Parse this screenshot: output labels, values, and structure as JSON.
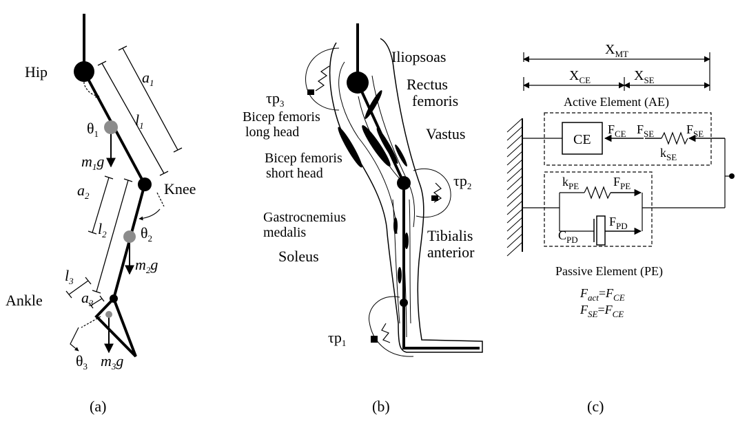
{
  "figure_a": {
    "hip": "Hip",
    "knee": "Knee",
    "ankle": "Ankle",
    "a1": {
      "base": "a",
      "sub": "1"
    },
    "l1": {
      "base": "l",
      "sub": "1"
    },
    "a2": {
      "base": "a",
      "sub": "2"
    },
    "l2": {
      "base": "l",
      "sub": "2"
    },
    "l3": {
      "base": "l",
      "sub": "3"
    },
    "a3": {
      "base": "a",
      "sub": "3"
    },
    "theta1": {
      "base": "θ",
      "sub": "1"
    },
    "theta2": {
      "base": "θ",
      "sub": "2"
    },
    "theta3": {
      "base": "θ",
      "sub": "3"
    },
    "m1g": {
      "m": "m",
      "sub": "1",
      "g": "g"
    },
    "m2g": {
      "m": "m",
      "sub": "2",
      "g": "g"
    },
    "m3g": {
      "m": "m",
      "sub": "3",
      "g": "g"
    },
    "caption": "(a)"
  },
  "figure_b": {
    "iliopsoas": "Iliopsoas",
    "rectus1": "Rectus",
    "rectus2": "femoris",
    "vastus": "Vastus",
    "tp3": {
      "base": "τp",
      "sub": "3"
    },
    "bfl1": "Bicep femoris",
    "bfl2": "long head",
    "bfs1": "Bicep femoris",
    "bfs2": "short head",
    "tp2": {
      "base": "τp",
      "sub": "2"
    },
    "gas1": "Gastrocnemius",
    "gas2": "medalis",
    "tib1": "Tibialis",
    "tib2": "anterior",
    "soleus": "Soleus",
    "tp1": {
      "base": "τp",
      "sub": "1"
    },
    "caption": "(b)"
  },
  "figure_c": {
    "xmt": {
      "base": "X",
      "sub": "MT"
    },
    "xce": {
      "base": "X",
      "sub": "CE"
    },
    "xse": {
      "base": "X",
      "sub": "SE"
    },
    "ae_title": "Active Element (AE)",
    "ce": "CE",
    "fce": {
      "base": "F",
      "sub": "CE"
    },
    "fse1": {
      "base": "F",
      "sub": "SE"
    },
    "fse2": {
      "base": "F",
      "sub": "SE"
    },
    "kse": {
      "base": "k",
      "sub": "SE"
    },
    "kpe": {
      "base": "k",
      "sub": "PE"
    },
    "fpe": {
      "base": "F",
      "sub": "PE"
    },
    "cpd": {
      "base": "C",
      "sub": "PD"
    },
    "fpd": {
      "base": "F",
      "sub": "PD"
    },
    "pe_title": "Passive Element (PE)",
    "eq1": {
      "l_base": "F",
      "l_sub": "act",
      "eq": "=",
      "r_base": "F",
      "r_sub": "CE"
    },
    "eq2": {
      "l_base": "F",
      "l_sub": "SE",
      "eq": "=",
      "r_base": "F",
      "r_sub": "CE"
    },
    "caption": "(c)"
  }
}
